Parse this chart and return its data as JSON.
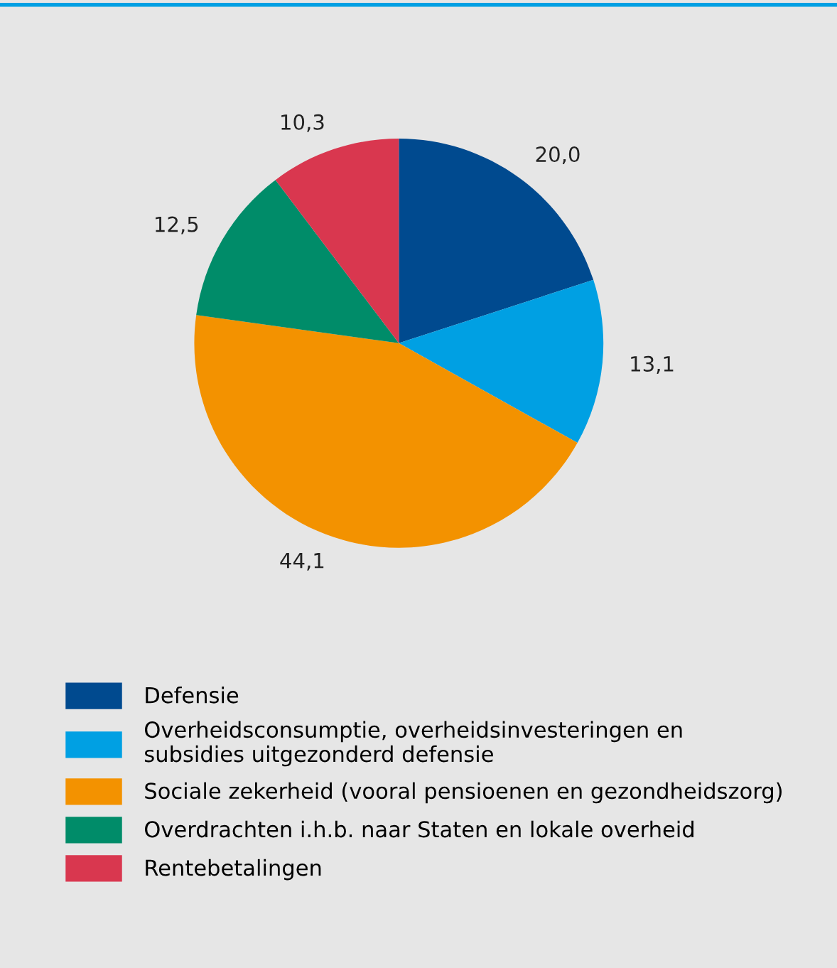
{
  "chart_data": {
    "type": "pie",
    "categories": [
      "Defensie",
      "Overheidsconsumptie, overheidsinvesteringen en\nsubsidies uitgezonderd defensie",
      "Sociale zekerheid (vooral pensioenen en gezondheidszorg)",
      "Overdrachten i.h.b. naar Staten en lokale overheid",
      "Rentebetalingen"
    ],
    "values": [
      20.0,
      13.1,
      44.1,
      12.5,
      10.3
    ],
    "value_labels": [
      "20,0",
      "13,1",
      "44,1",
      "12,5",
      "10,3"
    ],
    "colors": [
      "#004a8f",
      "#00a0e3",
      "#f39200",
      "#008c69",
      "#d9374f"
    ],
    "legend": "bottom"
  }
}
